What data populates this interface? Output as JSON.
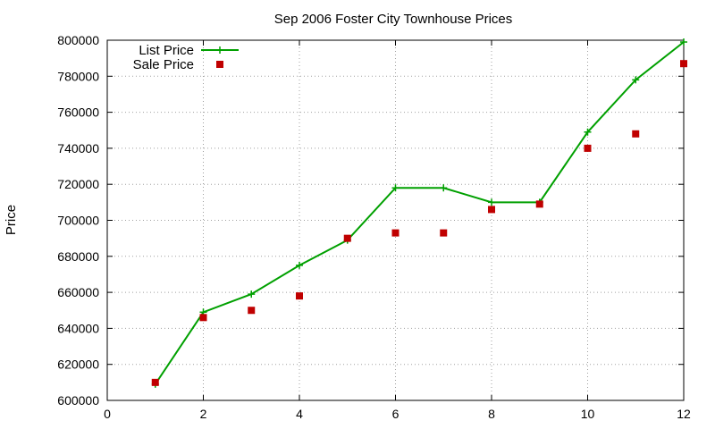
{
  "chart_data": {
    "type": "line",
    "title": "Sep 2006 Foster City Townhouse Prices",
    "xlabel": "",
    "ylabel": "Price",
    "xlim": [
      0,
      12
    ],
    "ylim": [
      600000,
      800000
    ],
    "xticks": [
      0,
      2,
      4,
      6,
      8,
      10,
      12
    ],
    "yticks": [
      600000,
      620000,
      640000,
      660000,
      680000,
      700000,
      720000,
      740000,
      760000,
      780000,
      800000
    ],
    "grid": true,
    "legend_position": "top-left",
    "series": [
      {
        "name": "List Price",
        "style": "line-with-plus-markers",
        "color": "#00a000",
        "x": [
          1,
          2,
          3,
          4,
          5,
          6,
          7,
          8,
          9,
          10,
          11,
          12
        ],
        "y": [
          609000,
          649000,
          659000,
          675000,
          689000,
          718000,
          718000,
          710000,
          710000,
          749000,
          778000,
          799000
        ]
      },
      {
        "name": "Sale Price",
        "style": "square-markers",
        "color": "#c00000",
        "x": [
          1,
          2,
          3,
          4,
          5,
          6,
          7,
          8,
          9,
          10,
          11,
          12
        ],
        "y": [
          610000,
          646000,
          650000,
          658000,
          690000,
          693000,
          693000,
          706000,
          709000,
          740000,
          748000,
          787000
        ]
      }
    ]
  }
}
